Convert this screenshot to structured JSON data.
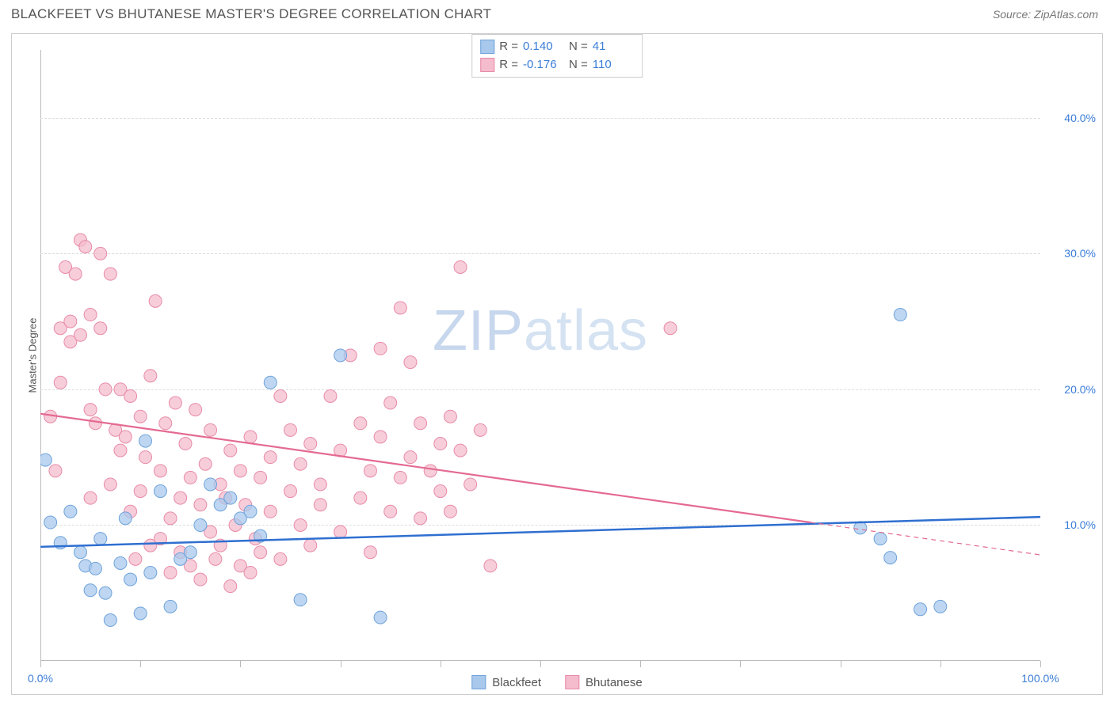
{
  "title": "BLACKFEET VS BHUTANESE MASTER'S DEGREE CORRELATION CHART",
  "source": "Source: ZipAtlas.com",
  "watermark": {
    "prefix": "ZIP",
    "suffix": "atlas"
  },
  "chart": {
    "type": "scatter",
    "y_axis_label": "Master's Degree",
    "background_color": "#ffffff",
    "grid_color": "#dddddd",
    "axis_color": "#bbbbbb",
    "tick_label_color": "#3b7dd8",
    "tick_label_fontsize": 14,
    "title_fontsize": 17,
    "title_color": "#555555",
    "xlim": [
      0,
      100
    ],
    "ylim": [
      0,
      45
    ],
    "x_ticks": [
      0,
      10,
      20,
      30,
      40,
      50,
      60,
      70,
      80,
      90,
      100
    ],
    "x_tick_labels": {
      "0": "0.0%",
      "100": "100.0%"
    },
    "y_ticks": [
      10,
      20,
      30,
      40
    ],
    "y_tick_labels": {
      "10": "10.0%",
      "20": "20.0%",
      "30": "30.0%",
      "40": "40.0%"
    },
    "series": [
      {
        "name": "Blackfeet",
        "marker_color": "#a8c8ec",
        "marker_border": "#6fa3db",
        "line_color": "#2f6fd0",
        "line_width": 2.5,
        "marker_radius": 8,
        "marker_opacity": 0.75,
        "R": "0.140",
        "N": "41",
        "trend": {
          "x1": 0,
          "y1": 8.4,
          "x2": 100,
          "y2": 10.6,
          "extrapolate_from_x": 100
        },
        "points": [
          [
            0.5,
            14.8
          ],
          [
            1,
            10.2
          ],
          [
            2,
            8.7
          ],
          [
            3,
            11.0
          ],
          [
            4,
            8.0
          ],
          [
            4.5,
            7.0
          ],
          [
            5,
            5.2
          ],
          [
            5.5,
            6.8
          ],
          [
            6,
            9.0
          ],
          [
            6.5,
            5.0
          ],
          [
            7,
            3.0
          ],
          [
            8,
            7.2
          ],
          [
            8.5,
            10.5
          ],
          [
            9,
            6.0
          ],
          [
            10,
            3.5
          ],
          [
            10.5,
            16.2
          ],
          [
            11,
            6.5
          ],
          [
            12,
            12.5
          ],
          [
            13,
            4.0
          ],
          [
            14,
            7.5
          ],
          [
            15,
            8.0
          ],
          [
            16,
            10.0
          ],
          [
            17,
            13.0
          ],
          [
            18,
            11.5
          ],
          [
            19,
            12.0
          ],
          [
            20,
            10.5
          ],
          [
            21,
            11.0
          ],
          [
            22,
            9.2
          ],
          [
            23,
            20.5
          ],
          [
            26,
            4.5
          ],
          [
            30,
            22.5
          ],
          [
            34,
            3.2
          ],
          [
            82,
            9.8
          ],
          [
            84,
            9.0
          ],
          [
            85,
            7.6
          ],
          [
            88,
            3.8
          ],
          [
            90,
            4.0
          ],
          [
            86,
            25.5
          ]
        ]
      },
      {
        "name": "Bhutanese",
        "marker_color": "#f4bccd",
        "marker_border": "#e88ba8",
        "line_color": "#e46a92",
        "line_width": 2.2,
        "marker_radius": 8,
        "marker_opacity": 0.75,
        "R": "-0.176",
        "N": "110",
        "trend": {
          "x1": 0,
          "y1": 18.2,
          "x2": 77,
          "y2": 10.2,
          "extrapolate_from_x": 77,
          "dash": true
        },
        "points": [
          [
            1,
            18.0
          ],
          [
            1.5,
            14.0
          ],
          [
            2,
            20.5
          ],
          [
            2,
            24.5
          ],
          [
            2.5,
            29.0
          ],
          [
            3,
            23.5
          ],
          [
            3,
            25.0
          ],
          [
            3.5,
            28.5
          ],
          [
            4,
            24.0
          ],
          [
            4,
            31.0
          ],
          [
            4.5,
            30.5
          ],
          [
            5,
            25.5
          ],
          [
            5,
            18.5
          ],
          [
            5,
            12.0
          ],
          [
            5.5,
            17.5
          ],
          [
            6,
            24.5
          ],
          [
            6,
            30.0
          ],
          [
            6.5,
            20.0
          ],
          [
            7,
            28.5
          ],
          [
            7,
            13.0
          ],
          [
            7.5,
            17.0
          ],
          [
            8,
            20.0
          ],
          [
            8,
            15.5
          ],
          [
            8.5,
            16.5
          ],
          [
            9,
            11.0
          ],
          [
            9,
            19.5
          ],
          [
            9.5,
            7.5
          ],
          [
            10,
            18.0
          ],
          [
            10,
            12.5
          ],
          [
            10.5,
            15.0
          ],
          [
            11,
            8.5
          ],
          [
            11,
            21.0
          ],
          [
            11.5,
            26.5
          ],
          [
            12,
            14.0
          ],
          [
            12,
            9.0
          ],
          [
            12.5,
            17.5
          ],
          [
            13,
            10.5
          ],
          [
            13,
            6.5
          ],
          [
            13.5,
            19.0
          ],
          [
            14,
            12.0
          ],
          [
            14,
            8.0
          ],
          [
            14.5,
            16.0
          ],
          [
            15,
            13.5
          ],
          [
            15,
            7.0
          ],
          [
            15.5,
            18.5
          ],
          [
            16,
            11.5
          ],
          [
            16,
            6.0
          ],
          [
            16.5,
            14.5
          ],
          [
            17,
            9.5
          ],
          [
            17,
            17.0
          ],
          [
            17.5,
            7.5
          ],
          [
            18,
            13.0
          ],
          [
            18,
            8.5
          ],
          [
            18.5,
            12.0
          ],
          [
            19,
            15.5
          ],
          [
            19,
            5.5
          ],
          [
            19.5,
            10.0
          ],
          [
            20,
            14.0
          ],
          [
            20,
            7.0
          ],
          [
            20.5,
            11.5
          ],
          [
            21,
            16.5
          ],
          [
            21,
            6.5
          ],
          [
            21.5,
            9.0
          ],
          [
            22,
            13.5
          ],
          [
            22,
            8.0
          ],
          [
            23,
            11.0
          ],
          [
            23,
            15.0
          ],
          [
            24,
            19.5
          ],
          [
            24,
            7.5
          ],
          [
            25,
            12.5
          ],
          [
            25,
            17.0
          ],
          [
            26,
            10.0
          ],
          [
            26,
            14.5
          ],
          [
            27,
            8.5
          ],
          [
            27,
            16.0
          ],
          [
            28,
            11.5
          ],
          [
            28,
            13.0
          ],
          [
            29,
            19.5
          ],
          [
            30,
            15.5
          ],
          [
            30,
            9.5
          ],
          [
            31,
            22.5
          ],
          [
            32,
            12.0
          ],
          [
            32,
            17.5
          ],
          [
            33,
            14.0
          ],
          [
            33,
            8.0
          ],
          [
            34,
            16.5
          ],
          [
            34,
            23.0
          ],
          [
            35,
            11.0
          ],
          [
            35,
            19.0
          ],
          [
            36,
            13.5
          ],
          [
            36,
            26.0
          ],
          [
            37,
            15.0
          ],
          [
            37,
            22.0
          ],
          [
            38,
            10.5
          ],
          [
            38,
            17.5
          ],
          [
            39,
            14.0
          ],
          [
            40,
            12.5
          ],
          [
            40,
            16.0
          ],
          [
            41,
            11.0
          ],
          [
            41,
            18.0
          ],
          [
            42,
            29.0
          ],
          [
            42,
            15.5
          ],
          [
            43,
            13.0
          ],
          [
            44,
            17.0
          ],
          [
            45,
            7.0
          ],
          [
            63,
            24.5
          ]
        ]
      }
    ]
  },
  "legend_stats_labels": {
    "R": "R =",
    "N": "N ="
  },
  "bottom_legend": [
    "Blackfeet",
    "Bhutanese"
  ]
}
